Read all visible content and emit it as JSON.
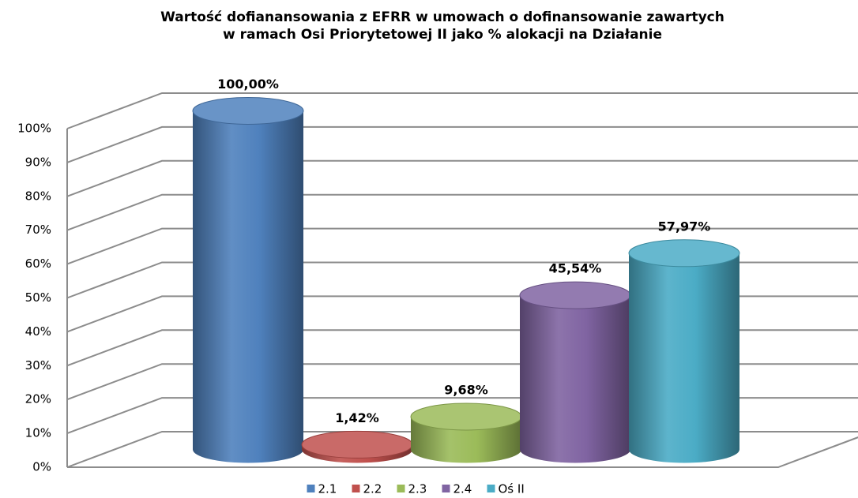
{
  "chart_data": {
    "type": "cylinder",
    "title": [
      "Wartość dofianansowania z EFRR w  umowach o dofinansowanie zawartych",
      "w ramach Osi Priorytetowej II  jako % alokacji na Działanie"
    ],
    "series": [
      {
        "name": "2.1",
        "color": "#4f81bd",
        "values": [
          100
        ],
        "value_labels": [
          "100,00%"
        ]
      },
      {
        "name": "2.2",
        "color": "#c0504d",
        "values": [
          1.42
        ],
        "value_labels": [
          "1,42%"
        ]
      },
      {
        "name": "2.3",
        "color": "#9bbb59",
        "values": [
          9.68
        ],
        "value_labels": [
          "9,68%"
        ]
      },
      {
        "name": "2.4",
        "color": "#8064a2",
        "values": [
          45.54
        ],
        "value_labels": [
          "45,54%"
        ]
      },
      {
        "name": "Oś II",
        "color": "#4bacc6",
        "values": [
          57.97
        ],
        "value_labels": [
          "57,97%"
        ]
      }
    ],
    "ylim": [
      0,
      100
    ],
    "yticks": [
      {
        "value": 0,
        "label": "0%"
      },
      {
        "value": 10,
        "label": "10%"
      },
      {
        "value": 20,
        "label": "20%"
      },
      {
        "value": 30,
        "label": "30%"
      },
      {
        "value": 40,
        "label": "40%"
      },
      {
        "value": 50,
        "label": "50%"
      },
      {
        "value": 60,
        "label": "60%"
      },
      {
        "value": 70,
        "label": "70%"
      },
      {
        "value": 80,
        "label": "80%"
      },
      {
        "value": 90,
        "label": "90%"
      },
      {
        "value": 100,
        "label": "100%"
      }
    ],
    "grid": true,
    "legend": "bottom"
  }
}
